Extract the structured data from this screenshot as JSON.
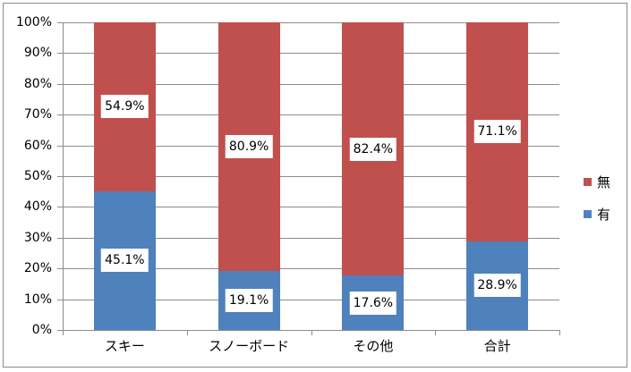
{
  "chart_data": {
    "type": "bar",
    "stacked": true,
    "normalized_percent": true,
    "title": "",
    "xlabel": "",
    "ylabel": "",
    "ylim": [
      0,
      100
    ],
    "yticks": [
      "0%",
      "10%",
      "20%",
      "30%",
      "40%",
      "50%",
      "60%",
      "70%",
      "80%",
      "90%",
      "100%"
    ],
    "grid": true,
    "legend_position": "right",
    "categories": [
      "スキー",
      "スノーボード",
      "その他",
      "合計"
    ],
    "series": [
      {
        "name": "有",
        "color": "#4f81bd",
        "values": [
          45.1,
          19.1,
          17.6,
          28.9
        ],
        "labels": [
          "45.1%",
          "19.1%",
          "17.6%",
          "28.9%"
        ]
      },
      {
        "name": "無",
        "color": "#c0504d",
        "values": [
          54.9,
          80.9,
          82.4,
          71.1
        ],
        "labels": [
          "54.9%",
          "80.9%",
          "82.4%",
          "71.1%"
        ]
      }
    ]
  },
  "legend": [
    {
      "label": "無",
      "color": "#c0504d"
    },
    {
      "label": "有",
      "color": "#4f81bd"
    }
  ]
}
